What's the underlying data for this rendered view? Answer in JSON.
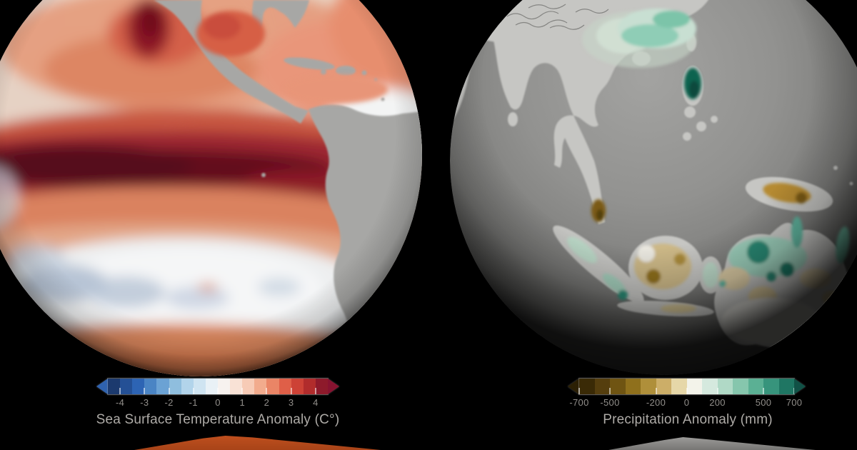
{
  "background": "#000000",
  "panels": {
    "sst": {
      "title": "Sea Surface Temperature Anomaly (C°)",
      "ticks": [
        "-4",
        "-3",
        "-2",
        "-1",
        "0",
        "1",
        "2",
        "3",
        "4"
      ],
      "tick_values": [
        -4,
        -3,
        -2,
        -1,
        0,
        1,
        2,
        3,
        4
      ],
      "range": [
        -4.5,
        4.5
      ],
      "colors": [
        "#1c3a6e",
        "#245095",
        "#2d64b4",
        "#4a84c4",
        "#6ba2d4",
        "#8fbede",
        "#b2d4ea",
        "#cfe4f1",
        "#e9f1f6",
        "#f7f2ef",
        "#f9e2d6",
        "#f7cbb6",
        "#f2ab8d",
        "#ea8566",
        "#df5f48",
        "#cd4236",
        "#b12c2c",
        "#8e1a2b"
      ],
      "arrow_left_color": "#2f62ae",
      "arrow_right_color": "#871330"
    },
    "precip": {
      "title": "Precipitation Anomaly (mm)",
      "ticks": [
        "-700",
        "-500",
        "-200",
        "0",
        "200",
        "500",
        "700"
      ],
      "tick_values": [
        -700,
        -500,
        -200,
        0,
        200,
        500,
        700
      ],
      "range": [
        -700,
        700
      ],
      "colors": [
        "#3a2a06",
        "#553e0e",
        "#6f5412",
        "#8f701c",
        "#af8f3a",
        "#ccae68",
        "#e6d7a8",
        "#f3f3ea",
        "#d5e9de",
        "#b0d9c6",
        "#86c6ad",
        "#5bb094",
        "#37947c",
        "#1f7663"
      ],
      "arrow_left_color": "#2c2004",
      "arrow_right_color": "#115146"
    }
  },
  "decor": {
    "orange_peak_color": "#bf4f1e",
    "gray_peak_color": "#9b9a98"
  },
  "chart_data": [
    {
      "type": "heatmap",
      "title": "Sea Surface Temperature Anomaly (C°)",
      "legend_position": "bottom",
      "colorbar_ticks": [
        -4,
        -3,
        -2,
        -1,
        0,
        1,
        2,
        3,
        4
      ],
      "colorbar_range": [
        -4.5,
        4.5
      ],
      "units": "C°",
      "palette": "blue-white-red diverging, 18 discrete steps with out-of-range arrows",
      "visible_region": "globe view of Pacific Ocean with North and South America",
      "visible_pattern": "strong dark-red positive anomaly band (+3 to +4) along the equatorial Pacific reaching the South American coast; warm salmon anomalies (+1 to +2) across most of the basin; near-zero white with small negative blue patches in the South Pacific"
    },
    {
      "type": "heatmap",
      "title": "Precipitation Anomaly (mm)",
      "legend_position": "bottom",
      "colorbar_ticks": [
        -700,
        -500,
        -200,
        0,
        200,
        500,
        700
      ],
      "colorbar_range": [
        -700,
        700
      ],
      "units": "mm",
      "palette": "brown-white-teal diverging, 14 discrete steps with out-of-range arrows",
      "visible_region": "globe view of South/Southeast Asia, Maritime Continent and Australia on gray sphere",
      "visible_pattern": "positive teal anomalies over southern China, Luzon and northern Australia; negative brown anomalies over Borneo, Malay Peninsula, New Guinea and parts of Australia"
    }
  ]
}
